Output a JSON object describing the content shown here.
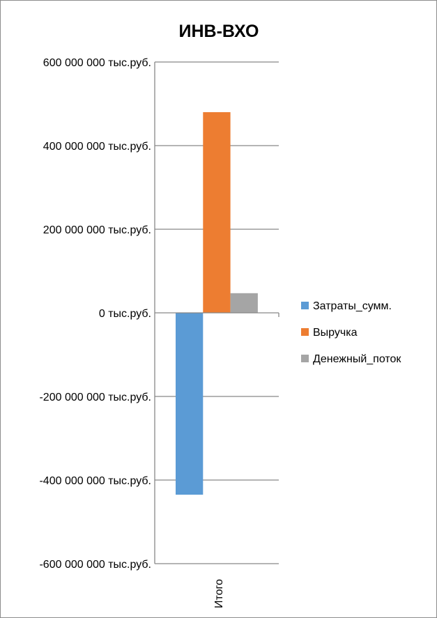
{
  "chart_data": {
    "type": "bar",
    "title": "ИНВ-ВХО",
    "categories": [
      "Итого"
    ],
    "series": [
      {
        "name": "Затраты_сумм.",
        "values": [
          -435000000
        ],
        "color": "#5B9BD5"
      },
      {
        "name": "Выручка",
        "values": [
          480000000
        ],
        "color": "#ED7D31"
      },
      {
        "name": "Денежный_поток",
        "values": [
          47000000
        ],
        "color": "#A5A5A5"
      }
    ],
    "ylim": [
      -600000000,
      600000000
    ],
    "yticks": [
      600000000,
      400000000,
      200000000,
      0,
      -200000000,
      -400000000,
      -600000000
    ],
    "ytick_labels": [
      "600 000 000 тыс.руб.",
      "400 000 000 тыс.руб.",
      "200 000 000 тыс.руб.",
      "0 тыс.руб.",
      "-200 000 000 тыс.руб.",
      "-400 000 000 тыс.руб.",
      "-600 000 000 тыс.руб."
    ],
    "xlabel": "",
    "ylabel": "",
    "grid": true,
    "legend": "right"
  }
}
